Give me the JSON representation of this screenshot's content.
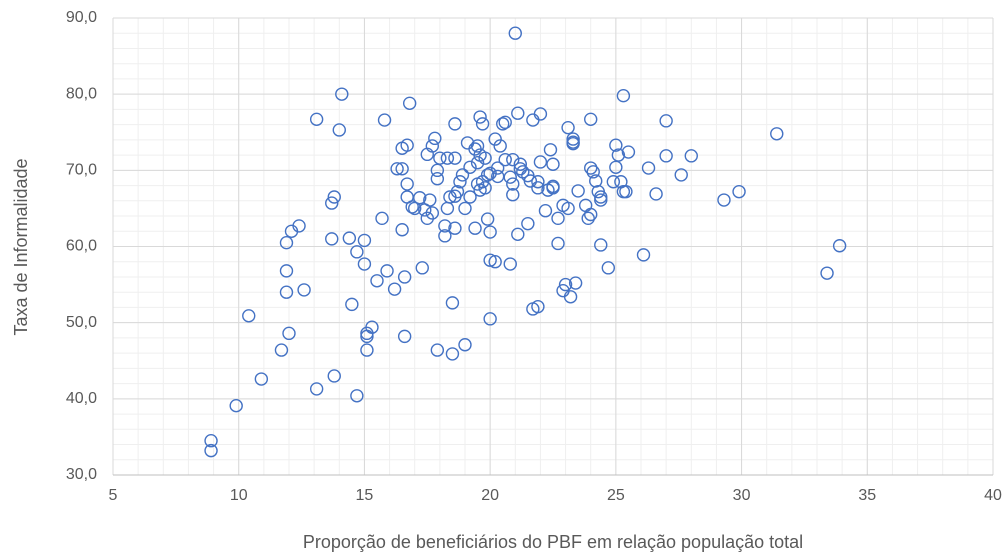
{
  "chart_data": {
    "type": "scatter",
    "x_label": "Proporção de beneficiários do PBF em relação população total",
    "y_label": "Taxa de Informalidade",
    "color": "#4472c4",
    "grid": true,
    "minor_grid": true,
    "xlim": [
      5,
      40
    ],
    "xticks": [
      5,
      10,
      15,
      20,
      25,
      30,
      35,
      40
    ],
    "ylim": [
      30,
      90
    ],
    "yticks": [
      {
        "value": 30,
        "label": "30,0"
      },
      {
        "value": 40,
        "label": "40,0"
      },
      {
        "value": 50,
        "label": "50,0"
      },
      {
        "value": 60,
        "label": "60,0"
      },
      {
        "value": 70,
        "label": "70,0"
      },
      {
        "value": 80,
        "label": "80,0"
      },
      {
        "value": 90,
        "label": "90,0"
      }
    ],
    "x": [
      8.9,
      8.9,
      9.9,
      10.4,
      10.9,
      11.7,
      12.0,
      11.9,
      11.9,
      11.9,
      12.1,
      12.4,
      12.6,
      13.1,
      13.1,
      13.7,
      13.7,
      13.8,
      13.8,
      14.0,
      14.1,
      14.4,
      14.5,
      14.7,
      14.7,
      15.0,
      15.0,
      15.1,
      15.1,
      15.1,
      15.3,
      15.5,
      15.7,
      15.8,
      15.9,
      16.2,
      16.3,
      16.5,
      16.5,
      16.5,
      16.6,
      16.6,
      16.7,
      16.7,
      16.7,
      16.8,
      16.9,
      17.0,
      17.2,
      17.3,
      17.4,
      17.5,
      17.5,
      17.6,
      17.7,
      17.8,
      17.7,
      17.9,
      17.9,
      17.9,
      18.0,
      18.2,
      18.2,
      18.3,
      18.4,
      18.3,
      18.5,
      18.5,
      18.6,
      18.6,
      18.6,
      18.6,
      18.7,
      18.8,
      18.9,
      19.0,
      19.0,
      19.1,
      19.2,
      19.2,
      19.4,
      19.4,
      19.5,
      19.5,
      19.5,
      19.6,
      19.6,
      19.6,
      19.7,
      19.7,
      19.8,
      19.8,
      19.9,
      19.9,
      20.0,
      20.0,
      20.0,
      20.2,
      20.0,
      20.2,
      20.3,
      20.3,
      20.4,
      20.5,
      20.6,
      20.6,
      20.8,
      20.8,
      20.9,
      20.9,
      20.9,
      21.1,
      21.0,
      21.1,
      21.2,
      21.2,
      21.3,
      21.5,
      21.5,
      21.6,
      21.7,
      21.7,
      21.9,
      21.9,
      22.0,
      22.0,
      21.9,
      22.2,
      22.3,
      22.4,
      22.5,
      22.5,
      22.5,
      22.7,
      22.7,
      22.9,
      22.9,
      23.0,
      23.1,
      23.1,
      23.3,
      23.3,
      23.3,
      23.2,
      23.4,
      23.5,
      23.8,
      23.9,
      24.0,
      24.0,
      24.0,
      24.1,
      24.2,
      24.3,
      24.4,
      24.4,
      24.4,
      24.7,
      24.9,
      25.0,
      25.0,
      25.1,
      25.2,
      25.3,
      25.3,
      25.4,
      25.5,
      26.1,
      26.3,
      26.6,
      27.0,
      27.0,
      27.6,
      28.0,
      29.3,
      29.9,
      31.4,
      33.4,
      33.9
    ],
    "values": [
      34.5,
      33.2,
      39.1,
      50.9,
      42.6,
      46.4,
      48.6,
      54.0,
      56.8,
      60.5,
      62.0,
      62.7,
      54.3,
      41.3,
      76.7,
      65.7,
      61.0,
      66.5,
      43.0,
      75.3,
      80.0,
      61.1,
      52.4,
      40.4,
      59.3,
      60.8,
      57.7,
      48.6,
      48.2,
      46.4,
      49.4,
      55.5,
      63.7,
      76.6,
      56.8,
      54.4,
      70.2,
      72.9,
      70.2,
      62.2,
      48.2,
      56.0,
      73.3,
      68.2,
      66.5,
      78.8,
      65.2,
      65.0,
      66.4,
      57.2,
      64.8,
      63.7,
      72.1,
      66.1,
      73.2,
      74.2,
      64.4,
      70.0,
      68.9,
      46.4,
      71.6,
      62.7,
      61.4,
      65.0,
      66.5,
      71.6,
      45.9,
      52.6,
      62.4,
      71.6,
      76.1,
      66.6,
      67.2,
      68.5,
      69.4,
      47.1,
      65.0,
      73.6,
      70.4,
      66.5,
      62.4,
      72.8,
      68.2,
      73.2,
      71.0,
      67.4,
      77.0,
      72.0,
      68.5,
      76.1,
      71.6,
      67.7,
      69.4,
      63.6,
      61.9,
      58.2,
      69.6,
      58.0,
      50.5,
      74.1,
      70.3,
      69.2,
      73.2,
      76.1,
      76.3,
      71.4,
      69.1,
      57.7,
      68.2,
      66.8,
      71.4,
      77.5,
      88.0,
      61.6,
      70.8,
      70.2,
      69.8,
      69.3,
      63.0,
      68.6,
      76.6,
      51.8,
      52.1,
      68.5,
      77.4,
      71.1,
      67.7,
      64.7,
      67.4,
      72.7,
      67.9,
      67.7,
      70.8,
      60.4,
      63.7,
      54.2,
      65.4,
      55.0,
      65.0,
      75.6,
      73.7,
      74.1,
      73.5,
      53.4,
      55.2,
      67.3,
      65.4,
      63.7,
      64.2,
      76.7,
      70.3,
      69.8,
      68.6,
      67.2,
      66.5,
      66.1,
      60.2,
      57.2,
      68.5,
      70.4,
      73.3,
      72.0,
      68.5,
      79.8,
      67.2,
      67.2,
      72.4,
      58.9,
      70.3,
      66.9,
      71.9,
      76.5,
      69.4,
      71.9,
      66.1,
      67.2,
      74.8,
      56.5,
      60.1
    ]
  }
}
